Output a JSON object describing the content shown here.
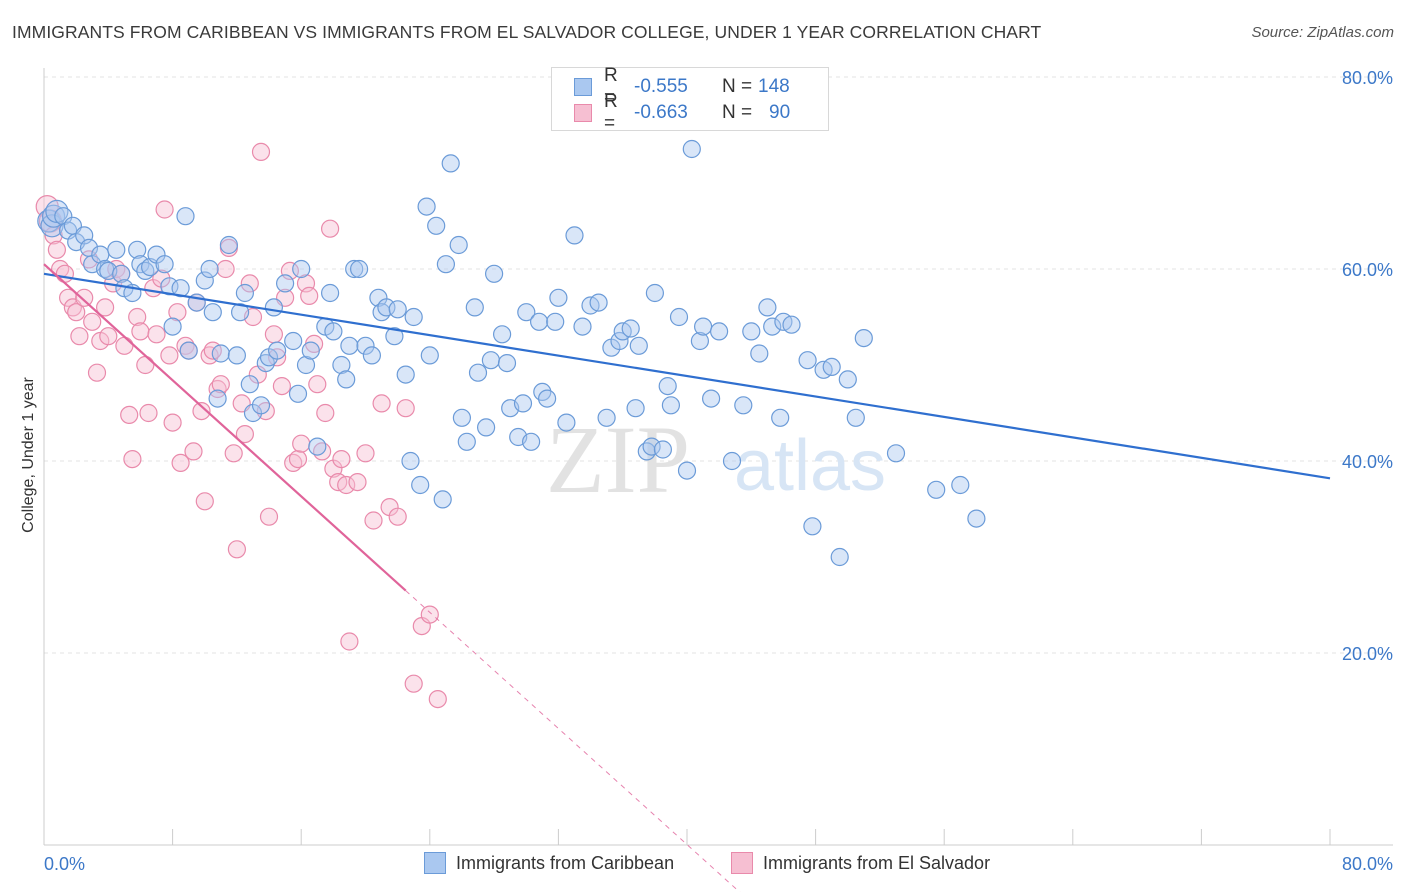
{
  "title": "IMMIGRANTS FROM CARIBBEAN VS IMMIGRANTS FROM EL SALVADOR COLLEGE, UNDER 1 YEAR CORRELATION CHART",
  "source": "Source: ZipAtlas.com",
  "watermark": {
    "zip": "ZIP",
    "atlas": "atlas"
  },
  "legend": {
    "rows": [
      {
        "r_label": "R =",
        "r_value": "-0.555",
        "n_label": "N =",
        "n_value": "148"
      },
      {
        "r_label": "R =",
        "r_value": "-0.663",
        "n_label": "N =",
        "n_value": "90"
      }
    ]
  },
  "bottom_legend": [
    "Immigrants from Caribbean",
    "Immigrants from El Salvador"
  ],
  "colors": {
    "blue_fill": "#aac8f0",
    "blue_stroke": "#6b9bd8",
    "blue_line": "#2f6fcf",
    "pink_fill": "#f6bfd2",
    "pink_stroke": "#e98aab",
    "pink_line": "#e0649a"
  },
  "chart_data": {
    "type": "scatter",
    "xlabel": "",
    "ylabel": "College, Under 1 year",
    "xlim": [
      0,
      80
    ],
    "ylim": [
      0,
      80
    ],
    "x_tick_labels": [
      "0.0%",
      "80.0%"
    ],
    "y_ticks": [
      {
        "value": 80,
        "label": "80.0%"
      },
      {
        "value": 60,
        "label": "60.0%"
      },
      {
        "value": 40,
        "label": "40.0%"
      },
      {
        "value": 20,
        "label": "20.0%"
      }
    ],
    "grid": "horizontal dashed",
    "series": [
      {
        "name": "Immigrants from Caribbean",
        "color": "#aac8f0",
        "trend": {
          "x": [
            0,
            80
          ],
          "y": [
            59.5,
            38.2
          ]
        },
        "points": [
          [
            0.3,
            65
          ],
          [
            0.5,
            64.5
          ],
          [
            0.6,
            65.5
          ],
          [
            0.8,
            66
          ],
          [
            1.2,
            65.5
          ],
          [
            1.5,
            64
          ],
          [
            1.8,
            64.5
          ],
          [
            2,
            62.8
          ],
          [
            2.5,
            63.5
          ],
          [
            2.8,
            62.2
          ],
          [
            3,
            60.5
          ],
          [
            3.5,
            61.5
          ],
          [
            3.8,
            60
          ],
          [
            4,
            59.8
          ],
          [
            4.5,
            62
          ],
          [
            4.8,
            59.5
          ],
          [
            5,
            58
          ],
          [
            5.5,
            57.5
          ],
          [
            5.8,
            62
          ],
          [
            6,
            60.5
          ],
          [
            6.3,
            59.8
          ],
          [
            6.6,
            60.2
          ],
          [
            7,
            61.5
          ],
          [
            7.5,
            60.5
          ],
          [
            7.8,
            58.2
          ],
          [
            8,
            54
          ],
          [
            8.5,
            58
          ],
          [
            8.8,
            65.5
          ],
          [
            9,
            51.5
          ],
          [
            9.5,
            56.5
          ],
          [
            10,
            58.8
          ],
          [
            10.3,
            60
          ],
          [
            10.5,
            55.5
          ],
          [
            10.8,
            46.5
          ],
          [
            11,
            51.2
          ],
          [
            11.5,
            62.5
          ],
          [
            12,
            51
          ],
          [
            12.2,
            55.5
          ],
          [
            12.5,
            57.5
          ],
          [
            12.8,
            48
          ],
          [
            13,
            45
          ],
          [
            13.5,
            45.8
          ],
          [
            13.8,
            50.2
          ],
          [
            14,
            50.8
          ],
          [
            14.3,
            56
          ],
          [
            14.5,
            51.5
          ],
          [
            15,
            58.5
          ],
          [
            15.5,
            52.5
          ],
          [
            15.8,
            47
          ],
          [
            16,
            60
          ],
          [
            16.3,
            50
          ],
          [
            16.6,
            51.5
          ],
          [
            17,
            41.5
          ],
          [
            17.5,
            54
          ],
          [
            17.8,
            57.5
          ],
          [
            18,
            53.5
          ],
          [
            18.5,
            50
          ],
          [
            18.8,
            48.5
          ],
          [
            19,
            52
          ],
          [
            19.3,
            60
          ],
          [
            19.6,
            60
          ],
          [
            20,
            52
          ],
          [
            20.4,
            51
          ],
          [
            20.8,
            57
          ],
          [
            21,
            55.5
          ],
          [
            21.3,
            56
          ],
          [
            21.8,
            53
          ],
          [
            22,
            55.8
          ],
          [
            22.5,
            49
          ],
          [
            22.8,
            40
          ],
          [
            23,
            55
          ],
          [
            23.4,
            37.5
          ],
          [
            23.8,
            66.5
          ],
          [
            24,
            51
          ],
          [
            24.4,
            64.5
          ],
          [
            24.8,
            36
          ],
          [
            25,
            60.5
          ],
          [
            25.3,
            71
          ],
          [
            25.8,
            62.5
          ],
          [
            26,
            44.5
          ],
          [
            26.3,
            42
          ],
          [
            26.8,
            56
          ],
          [
            27,
            49.2
          ],
          [
            27.5,
            43.5
          ],
          [
            27.8,
            50.5
          ],
          [
            28,
            59.5
          ],
          [
            28.5,
            53.2
          ],
          [
            28.8,
            50.2
          ],
          [
            29,
            45.5
          ],
          [
            29.5,
            42.5
          ],
          [
            29.8,
            46
          ],
          [
            30,
            55.5
          ],
          [
            30.3,
            42
          ],
          [
            30.8,
            54.5
          ],
          [
            31,
            47.2
          ],
          [
            31.3,
            46.5
          ],
          [
            31.8,
            54.5
          ],
          [
            32,
            57
          ],
          [
            32.5,
            44
          ],
          [
            33,
            63.5
          ],
          [
            33.5,
            54
          ],
          [
            34,
            56.2
          ],
          [
            34.5,
            56.5
          ],
          [
            35,
            44.5
          ],
          [
            35.3,
            51.8
          ],
          [
            35.8,
            52.5
          ],
          [
            36,
            53.5
          ],
          [
            36.5,
            53.8
          ],
          [
            36.8,
            45.5
          ],
          [
            37,
            52
          ],
          [
            37.5,
            41
          ],
          [
            37.8,
            41.5
          ],
          [
            38,
            57.5
          ],
          [
            38.5,
            41.2
          ],
          [
            38.8,
            47.8
          ],
          [
            39,
            45.8
          ],
          [
            39.5,
            55
          ],
          [
            40,
            39
          ],
          [
            40.3,
            72.5
          ],
          [
            40.8,
            52.5
          ],
          [
            41,
            54
          ],
          [
            41.5,
            46.5
          ],
          [
            42,
            53.5
          ],
          [
            42.8,
            40
          ],
          [
            43.5,
            45.8
          ],
          [
            44,
            53.5
          ],
          [
            44.5,
            51.2
          ],
          [
            45,
            56
          ],
          [
            45.3,
            54
          ],
          [
            45.8,
            44.5
          ],
          [
            46,
            54.5
          ],
          [
            46.5,
            54.2
          ],
          [
            47.5,
            50.5
          ],
          [
            47.8,
            33.2
          ],
          [
            48.5,
            49.5
          ],
          [
            49,
            49.8
          ],
          [
            49.5,
            30
          ],
          [
            50,
            48.5
          ],
          [
            50.5,
            44.5
          ],
          [
            51,
            52.8
          ],
          [
            53,
            40.8
          ],
          [
            55.5,
            37
          ],
          [
            57,
            37.5
          ],
          [
            58,
            34
          ]
        ]
      },
      {
        "name": "Immigrants from El Salvador",
        "color": "#f6bfd2",
        "trend": {
          "x": [
            0,
            22.5
          ],
          "y": [
            60.5,
            26.5
          ]
        },
        "trend_dashed": {
          "x": [
            22.5,
            44
          ],
          "y": [
            26.5,
            -6
          ]
        },
        "points": [
          [
            0.2,
            66.5
          ],
          [
            0.4,
            65
          ],
          [
            0.6,
            63.5
          ],
          [
            0.8,
            62
          ],
          [
            1,
            60
          ],
          [
            1.3,
            59.5
          ],
          [
            1.5,
            57
          ],
          [
            1.8,
            56
          ],
          [
            2,
            55.5
          ],
          [
            2.2,
            53
          ],
          [
            2.5,
            57
          ],
          [
            2.8,
            61
          ],
          [
            3,
            54.5
          ],
          [
            3.3,
            49.2
          ],
          [
            3.5,
            52.5
          ],
          [
            3.8,
            56
          ],
          [
            4,
            53
          ],
          [
            4.3,
            58.5
          ],
          [
            4.5,
            60
          ],
          [
            4.8,
            59.5
          ],
          [
            5,
            52
          ],
          [
            5.3,
            44.8
          ],
          [
            5.5,
            40.2
          ],
          [
            5.8,
            55
          ],
          [
            6,
            53.5
          ],
          [
            6.3,
            50
          ],
          [
            6.5,
            45
          ],
          [
            6.8,
            58
          ],
          [
            7,
            53.2
          ],
          [
            7.3,
            59
          ],
          [
            7.5,
            66.2
          ],
          [
            7.8,
            51
          ],
          [
            8,
            44
          ],
          [
            8.3,
            55.5
          ],
          [
            8.5,
            39.8
          ],
          [
            8.8,
            52
          ],
          [
            9,
            51.5
          ],
          [
            9.3,
            41
          ],
          [
            9.5,
            56.5
          ],
          [
            9.8,
            45.2
          ],
          [
            10,
            35.8
          ],
          [
            10.3,
            51
          ],
          [
            10.5,
            51.5
          ],
          [
            10.8,
            47.5
          ],
          [
            11,
            48
          ],
          [
            11.3,
            60
          ],
          [
            11.5,
            62.2
          ],
          [
            11.8,
            40.8
          ],
          [
            12,
            30.8
          ],
          [
            12.3,
            46
          ],
          [
            12.5,
            42.8
          ],
          [
            12.8,
            58.5
          ],
          [
            13,
            55
          ],
          [
            13.3,
            49
          ],
          [
            13.5,
            72.2
          ],
          [
            13.8,
            45.2
          ],
          [
            14,
            34.2
          ],
          [
            14.3,
            53.2
          ],
          [
            14.5,
            50.8
          ],
          [
            14.8,
            47.8
          ],
          [
            15,
            57
          ],
          [
            15.3,
            59.8
          ],
          [
            15.5,
            39.8
          ],
          [
            15.8,
            40.2
          ],
          [
            16,
            41.8
          ],
          [
            16.3,
            58.5
          ],
          [
            16.5,
            57.2
          ],
          [
            16.8,
            52.2
          ],
          [
            17,
            48
          ],
          [
            17.3,
            41
          ],
          [
            17.5,
            45
          ],
          [
            17.8,
            64.2
          ],
          [
            18,
            39.2
          ],
          [
            18.3,
            37.8
          ],
          [
            18.5,
            40.2
          ],
          [
            18.8,
            37.5
          ],
          [
            19,
            21.2
          ],
          [
            19.5,
            37.8
          ],
          [
            20,
            40.8
          ],
          [
            20.5,
            33.8
          ],
          [
            21,
            46
          ],
          [
            21.5,
            35.2
          ],
          [
            22,
            34.2
          ],
          [
            22.5,
            45.5
          ],
          [
            23,
            16.8
          ],
          [
            23.5,
            22.8
          ],
          [
            24,
            24
          ],
          [
            24.5,
            15.2
          ]
        ]
      }
    ]
  }
}
